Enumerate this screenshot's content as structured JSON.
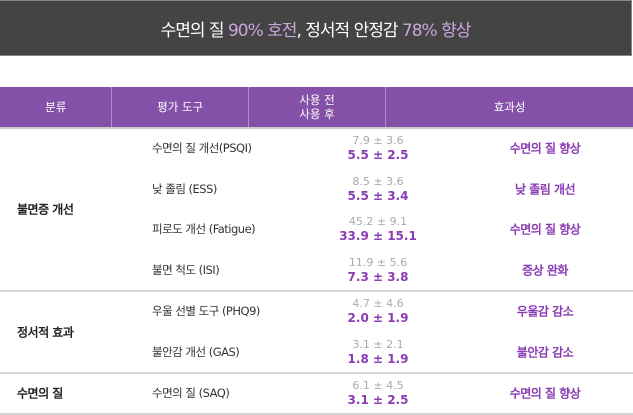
{
  "banner": {
    "part1": "수면의 질 ",
    "hl1": "90% 호전",
    "part2": ", 정서적 안정감 ",
    "hl2": "78% 향상"
  },
  "header": {
    "category": "분류",
    "tool": "평가 도구",
    "before": "사용 전",
    "after": "사용 후",
    "effect": "효과성"
  },
  "groups": [
    {
      "category": "불면증 개선",
      "rows": [
        {
          "tool": "수면의 질 개선(PSQI)",
          "before": "7.9 ± 3.6",
          "after": "5.5 ± 2.5",
          "effect": "수면의 질 향상"
        },
        {
          "tool": "낮 졸림 (ESS)",
          "before": "8.5 ± 3.6",
          "after": "5.5 ± 3.4",
          "effect": "낮 졸림 개선"
        },
        {
          "tool": "피로도 개선 (Fatigue)",
          "before": "45.2 ± 9.1",
          "after": "33.9 ± 15.1",
          "effect": "수면의 질 향상"
        },
        {
          "tool": "불면 척도 (ISI)",
          "before": "11.9 ± 5.6",
          "after": "7.3 ± 3.8",
          "effect": "증상 완화"
        }
      ]
    },
    {
      "category": "정서적 효과",
      "rows": [
        {
          "tool": "우울 선별 도구 (PHQ9)",
          "before": "4.7 ± 4.6",
          "after": "2.0 ± 1.9",
          "effect": "우울감 감소"
        },
        {
          "tool": "불안감 개선 (GAS)",
          "before": "3.1 ± 2.1",
          "after": "1.8 ± 1.9",
          "effect": "불안감 감소"
        }
      ]
    },
    {
      "category": "수면의 질",
      "rows": [
        {
          "tool": "수면의 질 (SAQ)",
          "before": "6.1 ± 4.5",
          "after": "3.1 ± 2.5",
          "effect": "수면의 질 향상"
        }
      ]
    }
  ]
}
